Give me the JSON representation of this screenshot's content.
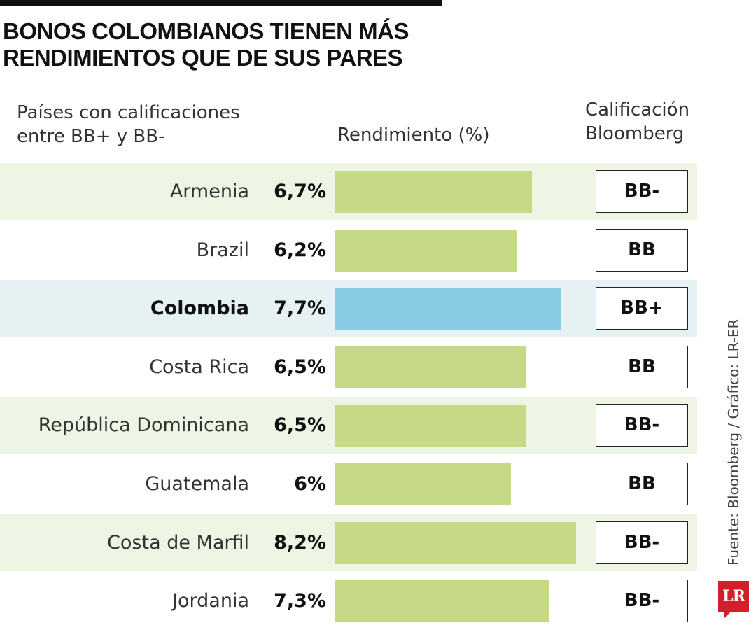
{
  "header": {
    "title_line1": "BONOS COLOMBIANOS TIENEN MÁS",
    "title_line2": "RENDIMIENTOS QUE DE SUS PARES"
  },
  "columns": {
    "countries_line1": "Países con calificaciones",
    "countries_line2": "entre BB+ y BB-",
    "yield": "Rendimiento (%)",
    "rating_line1": "Calificación",
    "rating_line2": "Bloomberg"
  },
  "chart_data": {
    "type": "bar",
    "orientation": "horizontal",
    "categories": [
      "Armenia",
      "Brazil",
      "Colombia",
      "Costa Rica",
      "República Dominicana",
      "Guatemala",
      "Costa de Marfil",
      "Jordania"
    ],
    "values": [
      6.7,
      6.2,
      7.7,
      6.5,
      6.5,
      6.0,
      8.2,
      7.3
    ],
    "value_labels": [
      "6,7%",
      "6,2%",
      "7,7%",
      "6,5%",
      "6,5%",
      "6%",
      "8,2%",
      "7,3%"
    ],
    "ratings": [
      "BB-",
      "BB",
      "BB+",
      "BB",
      "BB-",
      "BB",
      "BB-",
      "BB-"
    ],
    "highlight_category": "Colombia",
    "ylabel": "Rendimiento (%)",
    "xlim": [
      0,
      8.2
    ],
    "colors": {
      "bar": "#c6d987",
      "highlight": "#87cce4",
      "row_alt": "#eff5e5",
      "row_highlight": "#e5f1f3"
    },
    "grid": false
  },
  "footer": {
    "source": "Fuente: Bloomberg / Gráfico: LR-ER",
    "logo_text": "LR"
  }
}
